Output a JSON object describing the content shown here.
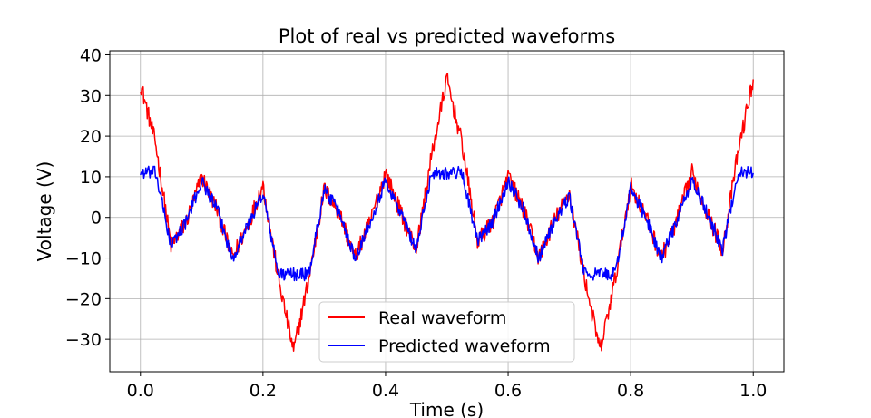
{
  "chart_data": {
    "type": "line",
    "title": "Plot of real vs predicted waveforms",
    "xlabel": "Time (s)",
    "ylabel": "Voltage (V)",
    "xlim": [
      -0.05,
      1.05
    ],
    "ylim": [
      -38,
      41
    ],
    "xticks": [
      0.0,
      0.2,
      0.4,
      0.6,
      0.8,
      1.0
    ],
    "xtick_labels": [
      "0.0",
      "0.2",
      "0.4",
      "0.6",
      "0.8",
      "1.0"
    ],
    "yticks": [
      -30,
      -20,
      -10,
      0,
      10,
      20,
      30,
      40
    ],
    "ytick_labels": [
      "−30",
      "−20",
      "−10",
      "0",
      "10",
      "20",
      "30",
      "40"
    ],
    "grid": true,
    "legend_position": "lower-center",
    "series": [
      {
        "name": "Real waveform",
        "color": "#ff0000",
        "x": [
          0.0,
          0.025,
          0.05,
          0.075,
          0.1,
          0.125,
          0.15,
          0.175,
          0.2,
          0.225,
          0.25,
          0.275,
          0.3,
          0.325,
          0.35,
          0.375,
          0.4,
          0.425,
          0.45,
          0.475,
          0.5,
          0.525,
          0.55,
          0.575,
          0.6,
          0.625,
          0.65,
          0.675,
          0.7,
          0.725,
          0.75,
          0.775,
          0.8,
          0.825,
          0.85,
          0.875,
          0.9,
          0.925,
          0.95,
          0.975,
          1.0
        ],
        "y": [
          33,
          18,
          -7,
          -1,
          10,
          2,
          -10,
          -2,
          8,
          -15,
          -33,
          -15,
          7,
          1,
          -10,
          -1,
          11,
          1,
          -8,
          15,
          34,
          18,
          -6,
          -1,
          10,
          2,
          -10,
          -1,
          6,
          -15,
          -33,
          -15,
          8,
          0,
          -10,
          -1,
          11,
          1,
          -8,
          16,
          34
        ]
      },
      {
        "name": "Predicted waveform",
        "color": "#0000ff",
        "x": [
          0.0,
          0.025,
          0.05,
          0.075,
          0.1,
          0.125,
          0.15,
          0.175,
          0.2,
          0.225,
          0.25,
          0.275,
          0.3,
          0.325,
          0.35,
          0.375,
          0.4,
          0.425,
          0.45,
          0.475,
          0.5,
          0.525,
          0.55,
          0.575,
          0.6,
          0.625,
          0.65,
          0.675,
          0.7,
          0.725,
          0.75,
          0.775,
          0.8,
          0.825,
          0.85,
          0.875,
          0.9,
          0.925,
          0.95,
          0.975,
          1.0
        ],
        "y": [
          11,
          11,
          -7,
          -1,
          9,
          2,
          -10,
          -2,
          6,
          -14,
          -14,
          -14,
          7,
          1,
          -10,
          -1,
          9,
          1,
          -8,
          11,
          11,
          11,
          -6,
          -1,
          9,
          2,
          -10,
          -1,
          5,
          -14,
          -14,
          -14,
          7,
          0,
          -10,
          -1,
          9,
          1,
          -8,
          11,
          11
        ]
      }
    ]
  }
}
